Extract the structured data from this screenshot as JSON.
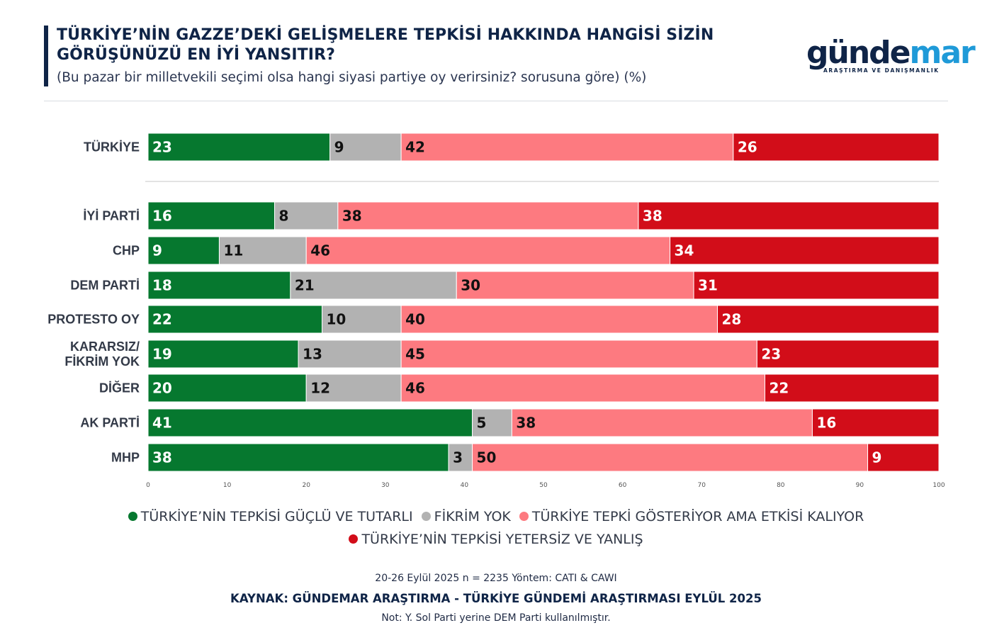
{
  "header": {
    "title_line1": "TÜRKİYE’NİN GAZZE’DEKİ GELİŞMELERE TEPKİSİ HAKKINDA HANGİSİ SİZİN",
    "title_line2": "GÖRÜŞÜNÜZÜ EN İYİ YANSITIR?",
    "subtitle": "(Bu pazar bir milletvekili seçimi olsa hangi siyasi partiye oy verirsiniz? sorusuna göre) (%)"
  },
  "logo": {
    "word_part1": "günde",
    "word_part2": "mar",
    "tagline": "ARAŞTIRMA VE DANIŞMANLIK"
  },
  "colors": {
    "green": "#06782f",
    "gray": "#b2b2b2",
    "pink": "#fd7a80",
    "red": "#d20d19"
  },
  "chart_data": {
    "type": "bar",
    "orientation": "horizontal",
    "stacked": true,
    "categories": [
      "TÜRKİYE",
      "İYİ PARTİ",
      "CHP",
      "DEM PARTİ",
      "PROTESTO OY",
      "KARARSIZ/\nFİKRİM YOK",
      "DİĞER",
      "AK PARTİ",
      "MHP"
    ],
    "series": [
      {
        "name": "TÜRKİYE’NİN TEPKİSİ GÜÇLÜ VE TUTARLI",
        "color": "#06782f",
        "label_color": "#ffffff",
        "values": [
          23,
          16,
          9,
          18,
          22,
          19,
          20,
          41,
          38
        ]
      },
      {
        "name": "FİKRİM YOK",
        "color": "#b2b2b2",
        "label_color": "#111111",
        "values": [
          9,
          8,
          11,
          21,
          10,
          13,
          12,
          5,
          3
        ]
      },
      {
        "name": "TÜRKİYE TEPKİ GÖSTERİYOR AMA ETKİSİ KALIYOR",
        "color": "#fd7a80",
        "label_color": "#111111",
        "values": [
          42,
          38,
          46,
          30,
          40,
          45,
          46,
          38,
          50
        ]
      },
      {
        "name": "TÜRKİYE’NİN TEPKİSİ YETERSİZ VE YANLIŞ",
        "color": "#d20d19",
        "label_color": "#ffffff",
        "values": [
          26,
          38,
          34,
          31,
          28,
          23,
          22,
          16,
          9
        ]
      }
    ],
    "xlim": [
      0,
      100
    ],
    "xticks": [
      0,
      10,
      20,
      30,
      40,
      50,
      60,
      70,
      80,
      90,
      100
    ],
    "xlabel": "",
    "ylabel": "",
    "legend_position": "bottom"
  },
  "footer": {
    "method": "20-26 Eylül 2025 n = 2235 Yöntem: CATI & CAWI",
    "source": "KAYNAK: GÜNDEMAR ARAŞTIRMA - TÜRKİYE GÜNDEMİ ARAŞTIRMASI EYLÜL 2025",
    "note": "Not: Y. Sol Parti yerine DEM Parti kullanılmıştır."
  }
}
